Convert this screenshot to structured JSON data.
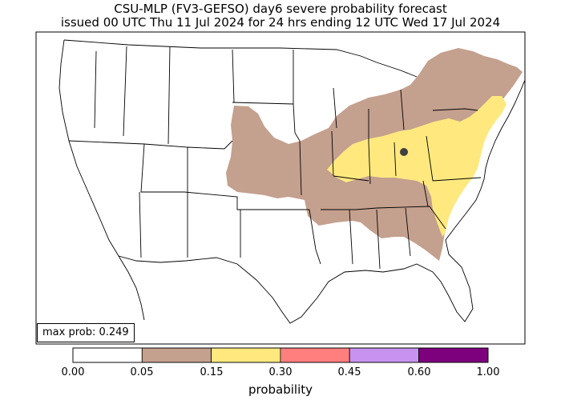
{
  "title": {
    "line1": "CSU-MLP (FV3-GEFSO) day6 severe probability forecast",
    "line2": "issued 00 UTC Thu 11 Jul 2024 for 24 hrs ending 12 UTC Wed 17 Jul 2024"
  },
  "max_prob_label": "max prob: 0.249",
  "colorbar": {
    "label": "probability",
    "ticks": [
      "0.00",
      "0.05",
      "0.15",
      "0.30",
      "0.45",
      "0.60",
      "1.00"
    ],
    "colors": [
      "#ffffff",
      "#c4a08e",
      "#ffe97f",
      "#ff7f7f",
      "#c893f0",
      "#7d007d"
    ]
  },
  "map": {
    "region": "CONUS",
    "contours": [
      {
        "level": "0.05-0.15",
        "color": "#c4a08e"
      },
      {
        "level": "0.15-0.30",
        "color": "#ffe97f"
      }
    ],
    "max_marker": {
      "color": "#404040",
      "location": "central Ohio"
    }
  }
}
